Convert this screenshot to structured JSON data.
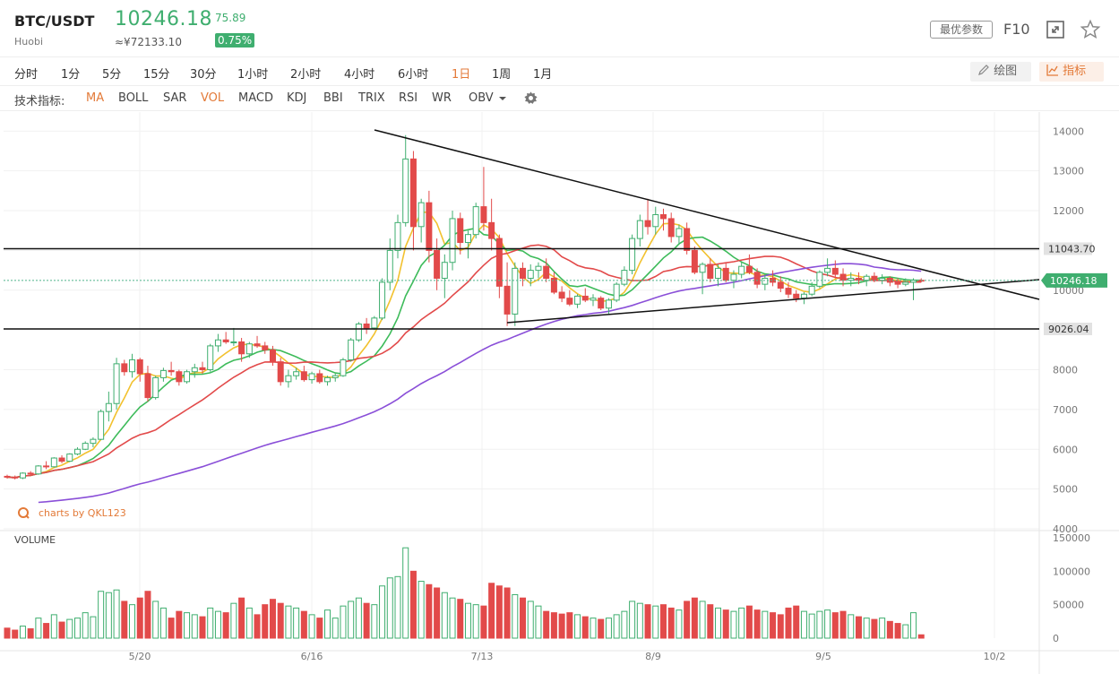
{
  "header": {
    "pair": "BTC/USDT",
    "exchange": "Huobi",
    "price": "10246.18",
    "cny": "≈¥72133.10",
    "change": "75.89",
    "change_pct": "0.75%",
    "params_button": "最优参数",
    "f10_label": "F10",
    "up_color": "#e24a4a",
    "down_color": "#3fae6f",
    "accent_color": "#e37a38"
  },
  "intervals": [
    "分时",
    "1分",
    "5分",
    "15分",
    "30分",
    "1小时",
    "2小时",
    "4小时",
    "6小时",
    "1日",
    "1周",
    "1月"
  ],
  "active_interval": "1日",
  "tools": {
    "draw": "绘图",
    "indicator": "指标"
  },
  "indicators": {
    "label": "技术指标:",
    "items": [
      "MA",
      "BOLL",
      "SAR",
      "VOL",
      "MACD",
      "KDJ",
      "BBI",
      "TRIX",
      "RSI",
      "WR",
      "OBV"
    ],
    "active": [
      "MA",
      "VOL"
    ]
  },
  "chart_data": {
    "type": "candlestick",
    "watermark": "charts by QKL123",
    "x_ticks": [
      "5/20",
      "6/16",
      "7/13",
      "8/9",
      "9/5",
      "10/2"
    ],
    "y_ticks": [
      14000,
      13000,
      12000,
      11000,
      10000,
      9000,
      8000,
      7000,
      6000,
      5000,
      4000
    ],
    "ylim": [
      4000,
      14300
    ],
    "horizontal_levels": [
      {
        "label": "11043.70",
        "value": 11043.7
      },
      {
        "label": "9026.04",
        "value": 9026.04
      }
    ],
    "current_price": {
      "label": "10246.18",
      "value": 10246.18
    },
    "volume_panel": {
      "label": "VOLUME",
      "y_ticks": [
        150000,
        100000,
        50000,
        0
      ],
      "ylim": [
        0,
        150000
      ]
    },
    "ma_colors": [
      "#f2c12e",
      "#3dbb5a",
      "#e24a4a",
      "#8a4fd8"
    ],
    "candles": [
      [
        5320,
        5360,
        5260,
        5300,
        15000
      ],
      [
        5300,
        5340,
        5240,
        5280,
        12000
      ],
      [
        5280,
        5420,
        5250,
        5400,
        18000
      ],
      [
        5400,
        5450,
        5350,
        5380,
        14000
      ],
      [
        5380,
        5600,
        5360,
        5580,
        30000
      ],
      [
        5580,
        5700,
        5500,
        5560,
        22000
      ],
      [
        5560,
        5800,
        5540,
        5780,
        35000
      ],
      [
        5780,
        5850,
        5650,
        5700,
        24000
      ],
      [
        5700,
        5900,
        5680,
        5880,
        28000
      ],
      [
        5880,
        6050,
        5850,
        6000,
        30000
      ],
      [
        6000,
        6200,
        5980,
        6150,
        38000
      ],
      [
        6150,
        6300,
        6050,
        6250,
        32000
      ],
      [
        6250,
        7000,
        6230,
        6950,
        70000
      ],
      [
        6950,
        7450,
        6700,
        7150,
        68000
      ],
      [
        7150,
        8300,
        7000,
        8150,
        72000
      ],
      [
        8150,
        8250,
        7850,
        7950,
        55000
      ],
      [
        7950,
        8400,
        7800,
        8250,
        50000
      ],
      [
        8250,
        8300,
        7700,
        7900,
        60000
      ],
      [
        7900,
        8100,
        7200,
        7300,
        70000
      ],
      [
        7300,
        7850,
        7250,
        7800,
        55000
      ],
      [
        7800,
        8050,
        7700,
        7980,
        45000
      ],
      [
        7980,
        8200,
        7850,
        7950,
        30000
      ],
      [
        7950,
        8000,
        7600,
        7700,
        40000
      ],
      [
        7700,
        8000,
        7650,
        7950,
        38000
      ],
      [
        7950,
        8150,
        7800,
        8050,
        35000
      ],
      [
        8050,
        8200,
        7900,
        8000,
        32000
      ],
      [
        8000,
        8650,
        7950,
        8600,
        45000
      ],
      [
        8600,
        8900,
        8450,
        8750,
        40000
      ],
      [
        8750,
        8950,
        8650,
        8700,
        38000
      ],
      [
        8700,
        9050,
        8600,
        8700,
        52000
      ],
      [
        8700,
        8800,
        8200,
        8400,
        60000
      ],
      [
        8400,
        8700,
        8300,
        8650,
        45000
      ],
      [
        8650,
        8850,
        8550,
        8600,
        35000
      ],
      [
        8600,
        8700,
        8400,
        8500,
        50000
      ],
      [
        8500,
        8600,
        8100,
        8200,
        58000
      ],
      [
        8200,
        8300,
        7600,
        7700,
        52000
      ],
      [
        7700,
        8000,
        7550,
        7850,
        48000
      ],
      [
        7850,
        8050,
        7750,
        7950,
        45000
      ],
      [
        7950,
        8100,
        7700,
        7750,
        40000
      ],
      [
        7750,
        7950,
        7650,
        7900,
        35000
      ],
      [
        7900,
        8000,
        7650,
        7700,
        30000
      ],
      [
        7700,
        7850,
        7600,
        7800,
        42000
      ],
      [
        7800,
        7900,
        7700,
        7850,
        30000
      ],
      [
        7850,
        8300,
        7820,
        8250,
        48000
      ],
      [
        8250,
        8800,
        8200,
        8750,
        55000
      ],
      [
        8750,
        9200,
        8700,
        9150,
        60000
      ],
      [
        9150,
        9300,
        8900,
        9050,
        52000
      ],
      [
        9050,
        9350,
        9000,
        9300,
        50000
      ],
      [
        9300,
        10300,
        9250,
        10200,
        78000
      ],
      [
        10200,
        11300,
        10000,
        11000,
        90000
      ],
      [
        11000,
        11900,
        10800,
        11700,
        92000
      ],
      [
        11700,
        13900,
        11600,
        13300,
        135000
      ],
      [
        13300,
        13500,
        11000,
        11600,
        100000
      ],
      [
        11600,
        12300,
        11200,
        12200,
        85000
      ],
      [
        12200,
        12500,
        10700,
        11000,
        80000
      ],
      [
        11000,
        11300,
        10000,
        10300,
        75000
      ],
      [
        10300,
        10900,
        9800,
        10700,
        68000
      ],
      [
        10700,
        12000,
        10500,
        11800,
        60000
      ],
      [
        11800,
        11950,
        10900,
        11200,
        58000
      ],
      [
        11200,
        11500,
        10800,
        11400,
        52000
      ],
      [
        11400,
        12200,
        11300,
        12100,
        50000
      ],
      [
        12100,
        13100,
        11500,
        11700,
        48000
      ],
      [
        11700,
        12300,
        11000,
        11300,
        82000
      ],
      [
        11300,
        11400,
        9800,
        10100,
        78000
      ],
      [
        10100,
        10700,
        9100,
        9400,
        75000
      ],
      [
        9400,
        10700,
        9100,
        10550,
        65000
      ],
      [
        10550,
        10700,
        10100,
        10300,
        60000
      ],
      [
        10300,
        10650,
        10100,
        10500,
        55000
      ],
      [
        10500,
        10700,
        10300,
        10600,
        48000
      ],
      [
        10600,
        10800,
        10200,
        10300,
        40000
      ],
      [
        10300,
        10450,
        9900,
        9950,
        38000
      ],
      [
        9950,
        10100,
        9700,
        9800,
        36000
      ],
      [
        9800,
        10000,
        9600,
        9650,
        38000
      ],
      [
        9650,
        9900,
        9550,
        9850,
        35000
      ],
      [
        9850,
        10050,
        9700,
        9750,
        32000
      ],
      [
        9750,
        9900,
        9600,
        9800,
        30000
      ],
      [
        9800,
        9850,
        9500,
        9550,
        28000
      ],
      [
        9550,
        9800,
        9400,
        9750,
        30000
      ],
      [
        9750,
        10200,
        9700,
        10150,
        35000
      ],
      [
        10150,
        10600,
        10100,
        10500,
        40000
      ],
      [
        10500,
        11400,
        10400,
        11300,
        55000
      ],
      [
        11300,
        11900,
        11100,
        11750,
        52000
      ],
      [
        11750,
        12300,
        11400,
        11600,
        50000
      ],
      [
        11600,
        12100,
        11400,
        11900,
        48000
      ],
      [
        11900,
        12050,
        11500,
        11800,
        50000
      ],
      [
        11800,
        11950,
        11200,
        11350,
        45000
      ],
      [
        11350,
        11650,
        11150,
        11550,
        42000
      ],
      [
        11550,
        11700,
        10900,
        11000,
        55000
      ],
      [
        11000,
        11100,
        10400,
        10450,
        60000
      ],
      [
        10450,
        10700,
        9900,
        10650,
        55000
      ],
      [
        10650,
        10800,
        10200,
        10300,
        50000
      ],
      [
        10300,
        10650,
        10100,
        10550,
        45000
      ],
      [
        10550,
        10700,
        10200,
        10250,
        42000
      ],
      [
        10250,
        10500,
        10050,
        10400,
        40000
      ],
      [
        10400,
        10700,
        10300,
        10600,
        45000
      ],
      [
        10600,
        10900,
        10400,
        10450,
        48000
      ],
      [
        10450,
        10550,
        10050,
        10150,
        42000
      ],
      [
        10150,
        10400,
        10000,
        10300,
        40000
      ],
      [
        10300,
        10500,
        10100,
        10200,
        38000
      ],
      [
        10200,
        10350,
        9950,
        10050,
        35000
      ],
      [
        10050,
        10200,
        9800,
        9900,
        45000
      ],
      [
        9900,
        10000,
        9700,
        9800,
        48000
      ],
      [
        9800,
        9950,
        9650,
        9900,
        40000
      ],
      [
        9900,
        10200,
        9850,
        10100,
        36000
      ],
      [
        10100,
        10500,
        10050,
        10450,
        40000
      ],
      [
        10450,
        10800,
        10350,
        10550,
        42000
      ],
      [
        10550,
        10750,
        10300,
        10400,
        38000
      ],
      [
        10400,
        10550,
        10100,
        10250,
        40000
      ],
      [
        10250,
        10450,
        10100,
        10300,
        35000
      ],
      [
        10300,
        10450,
        10150,
        10250,
        32000
      ],
      [
        10250,
        10400,
        10100,
        10350,
        30000
      ],
      [
        10350,
        10450,
        10200,
        10250,
        28000
      ],
      [
        10250,
        10400,
        10150,
        10300,
        30000
      ],
      [
        10300,
        10350,
        10100,
        10200,
        25000
      ],
      [
        10200,
        10300,
        10050,
        10150,
        22000
      ],
      [
        10150,
        10300,
        10100,
        10200,
        20000
      ],
      [
        10200,
        10300,
        9750,
        10250,
        38000
      ],
      [
        10250,
        10300,
        10200,
        10246,
        5000
      ]
    ]
  }
}
